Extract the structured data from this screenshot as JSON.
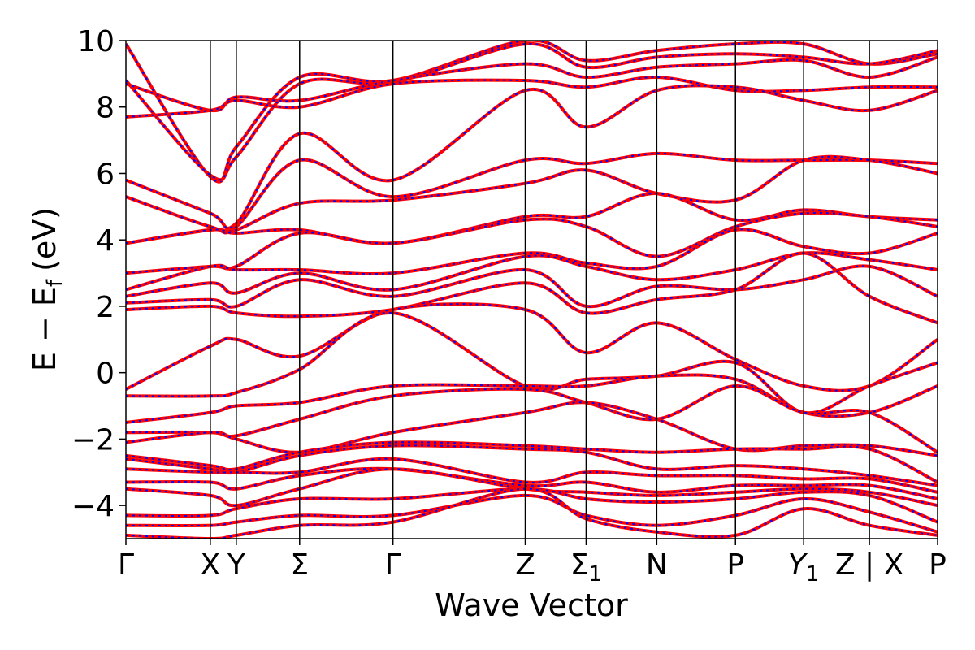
{
  "chart_data": {
    "type": "line",
    "xlabel": "Wave Vector",
    "ylabel": "E − E",
    "ylabel_sub": "f",
    "ylabel_unit": "(eV)",
    "ylim": [
      -5,
      10
    ],
    "yticks": [
      {
        "value": -4,
        "label": "−4"
      },
      {
        "value": -2,
        "label": "−2"
      },
      {
        "value": 0,
        "label": "0"
      },
      {
        "value": 2,
        "label": "2"
      },
      {
        "value": 4,
        "label": "4"
      },
      {
        "value": 6,
        "label": "6"
      },
      {
        "value": 8,
        "label": "8"
      },
      {
        "value": 10,
        "label": "10"
      }
    ],
    "xlim": [
      0,
      1
    ],
    "kpoints": [
      {
        "x": 0.0,
        "label": "Γ"
      },
      {
        "x": 0.104,
        "label": "X"
      },
      {
        "x": 0.136,
        "label": "Y"
      },
      {
        "x": 0.214,
        "label": "Σ"
      },
      {
        "x": 0.329,
        "label": "Γ"
      },
      {
        "x": 0.492,
        "label": "Z"
      },
      {
        "x": 0.567,
        "label": "Σ",
        "sub": "1"
      },
      {
        "x": 0.654,
        "label": "N"
      },
      {
        "x": 0.751,
        "label": "P"
      },
      {
        "x": 0.835,
        "label": "Y",
        "sub": "1",
        "italic": true
      },
      {
        "x": 0.916,
        "label": "Z | X"
      },
      {
        "x": 1.0,
        "label": "P"
      }
    ],
    "series_style": [
      {
        "color": "#ff0000",
        "style": "solid",
        "width": 4
      },
      {
        "color": "#0000ff",
        "style": "dashed",
        "width": 2
      }
    ],
    "series": [
      {
        "y": [
          9.9,
          5.9,
          6.8,
          8.9,
          8.8,
          10.0,
          9.4,
          9.7,
          9.9,
          9.9,
          9.3,
          9.6
        ]
      },
      {
        "y": [
          8.8,
          5.95,
          6.5,
          8.7,
          8.75,
          9.9,
          9.2,
          9.5,
          9.6,
          9.5,
          9.3,
          9.7
        ]
      },
      {
        "y": [
          8.7,
          7.9,
          8.3,
          8.2,
          8.8,
          9.3,
          8.9,
          9.2,
          9.3,
          9.4,
          8.9,
          9.5
        ]
      },
      {
        "y": [
          7.7,
          7.9,
          8.2,
          8.0,
          8.7,
          8.8,
          8.6,
          8.9,
          8.5,
          8.5,
          8.6,
          8.6
        ]
      },
      {
        "y": [
          5.8,
          4.8,
          4.5,
          7.2,
          5.8,
          8.5,
          7.4,
          8.5,
          8.6,
          8.2,
          7.9,
          8.5
        ]
      },
      {
        "y": [
          5.3,
          4.4,
          4.4,
          6.4,
          5.3,
          6.4,
          6.3,
          6.6,
          6.4,
          6.4,
          6.4,
          6.3
        ]
      },
      {
        "y": [
          3.9,
          4.3,
          4.3,
          5.1,
          5.2,
          5.7,
          6.1,
          5.4,
          5.2,
          6.4,
          6.4,
          6.0
        ]
      },
      {
        "y": [
          3.9,
          4.3,
          4.2,
          4.3,
          3.9,
          4.7,
          4.7,
          5.4,
          4.6,
          4.9,
          4.7,
          4.6
        ]
      },
      {
        "y": [
          3.0,
          3.2,
          3.2,
          4.2,
          3.9,
          4.6,
          4.4,
          3.5,
          4.4,
          4.8,
          4.7,
          4.4
        ]
      },
      {
        "y": [
          2.5,
          3.2,
          3.1,
          3.1,
          3.0,
          3.6,
          3.3,
          3.2,
          4.3,
          3.8,
          3.6,
          4.2
        ]
      },
      {
        "y": [
          2.3,
          2.7,
          2.4,
          3.0,
          2.5,
          3.5,
          3.2,
          2.8,
          3.1,
          3.6,
          3.4,
          3.1
        ]
      },
      {
        "y": [
          2.1,
          2.2,
          2.0,
          2.8,
          2.3,
          3.1,
          2.0,
          2.6,
          2.5,
          2.8,
          3.2,
          2.3
        ]
      },
      {
        "y": [
          1.9,
          2.0,
          1.8,
          1.7,
          1.9,
          2.7,
          1.8,
          2.2,
          2.5,
          3.6,
          2.3,
          1.5
        ]
      },
      {
        "y": [
          -0.5,
          0.8,
          1.0,
          0.5,
          1.9,
          1.9,
          0.6,
          1.5,
          0.4,
          -0.4,
          -0.4,
          1.0
        ]
      },
      {
        "y": [
          -0.7,
          -0.7,
          -0.6,
          0.1,
          1.8,
          -0.4,
          -0.2,
          -0.1,
          0.3,
          -1.2,
          -0.4,
          0.3
        ]
      },
      {
        "y": [
          -1.5,
          -1.2,
          -1.0,
          -0.9,
          -0.4,
          -0.4,
          -0.4,
          -0.1,
          -0.2,
          -1.2,
          -1.2,
          -0.4
        ]
      },
      {
        "y": [
          -1.8,
          -1.8,
          -1.9,
          -1.4,
          -0.7,
          -0.5,
          -0.9,
          -1.4,
          -0.4,
          -1.2,
          -1.2,
          -2.4
        ]
      },
      {
        "y": [
          -2.1,
          -1.8,
          -2.0,
          -2.4,
          -1.8,
          -1.2,
          -0.9,
          -1.4,
          -2.3,
          -2.2,
          -2.2,
          -2.5
        ]
      },
      {
        "y": [
          -2.5,
          -2.8,
          -2.9,
          -2.4,
          -2.1,
          -2.2,
          -2.3,
          -2.4,
          -2.3,
          -2.3,
          -2.3,
          -3.3
        ]
      },
      {
        "y": [
          -2.6,
          -2.9,
          -3.0,
          -2.5,
          -2.2,
          -2.3,
          -2.4,
          -2.9,
          -2.8,
          -2.9,
          -3.1,
          -3.4
        ]
      },
      {
        "y": [
          -2.9,
          -3.0,
          -3.0,
          -3.0,
          -2.6,
          -3.3,
          -3.0,
          -3.1,
          -3.1,
          -3.2,
          -3.2,
          -3.6
        ]
      },
      {
        "y": [
          -3.3,
          -3.3,
          -3.5,
          -3.1,
          -2.9,
          -3.4,
          -3.3,
          -3.6,
          -3.4,
          -3.4,
          -3.4,
          -3.8
        ]
      },
      {
        "y": [
          -3.5,
          -3.7,
          -4.0,
          -3.5,
          -2.9,
          -3.5,
          -3.6,
          -3.7,
          -3.6,
          -3.5,
          -3.6,
          -4.0
        ]
      },
      {
        "y": [
          -4.3,
          -4.3,
          -4.1,
          -3.8,
          -3.8,
          -3.5,
          -3.8,
          -3.9,
          -3.8,
          -3.6,
          -3.7,
          -4.5
        ]
      },
      {
        "y": [
          -4.6,
          -4.6,
          -4.5,
          -4.3,
          -4.3,
          -3.7,
          -4.3,
          -4.6,
          -4.3,
          -3.8,
          -4.2,
          -4.8
        ]
      },
      {
        "y": [
          -4.9,
          -5.0,
          -4.9,
          -4.6,
          -4.5,
          -3.5,
          -4.4,
          -4.8,
          -4.9,
          -4.1,
          -4.6,
          -4.9
        ]
      }
    ]
  }
}
